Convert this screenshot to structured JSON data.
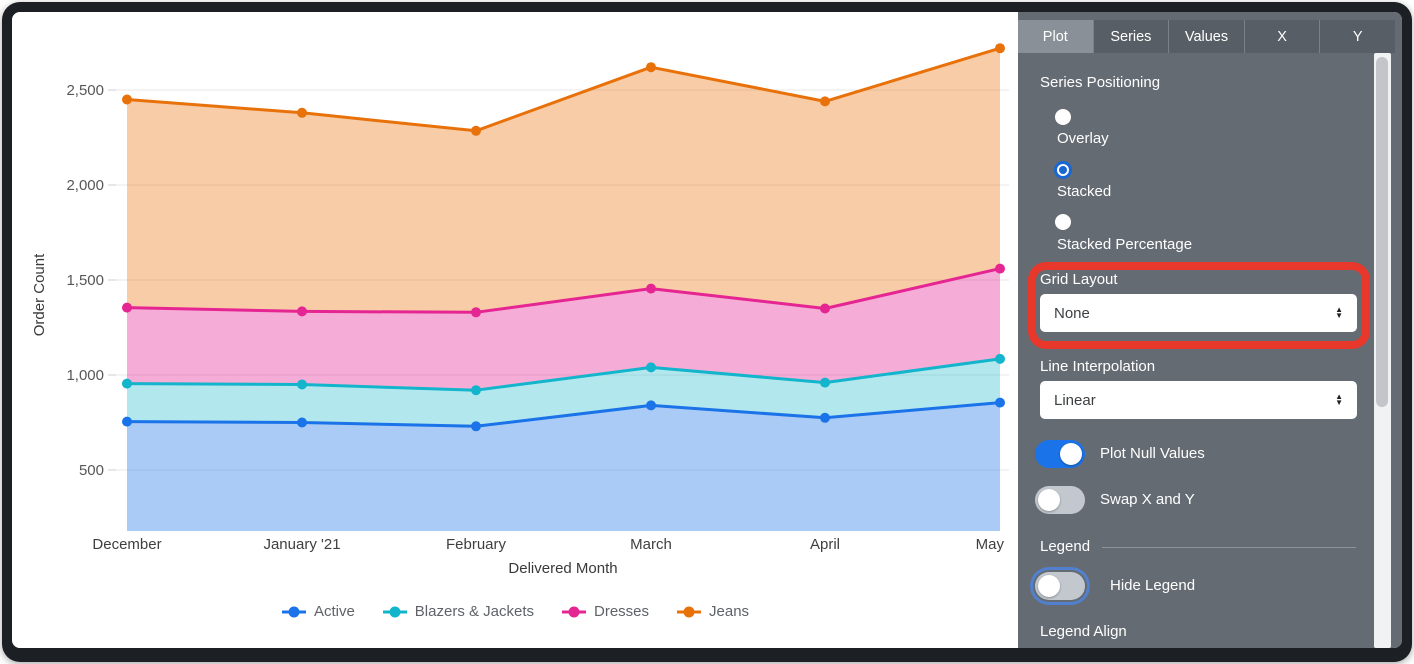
{
  "window": {
    "frame_color": "#1c2024",
    "chart_bg": "#ffffff",
    "panel_bg": "#656b73"
  },
  "chart_data": {
    "type": "area",
    "stacking": "stacked",
    "title": "",
    "x_axis_label": "Delivered Month",
    "y_axis_label": "Order Count",
    "categories": [
      "December",
      "January '21",
      "February",
      "March",
      "April",
      "May"
    ],
    "y_ticks": [
      500,
      1000,
      1500,
      2000,
      2500
    ],
    "grid": true,
    "legend_position": "bottom",
    "series": [
      {
        "name": "Active",
        "color": "#1A73E8",
        "fill": "rgba(26,115,232,0.37)",
        "values": [
          755,
          750,
          730,
          840,
          775,
          855
        ]
      },
      {
        "name": "Blazers & Jackets",
        "color": "#12B5CB",
        "fill": "rgba(18,181,203,0.32)",
        "values": [
          200,
          200,
          190,
          200,
          185,
          230
        ]
      },
      {
        "name": "Dresses",
        "color": "#E52592",
        "fill": "rgba(229,37,146,0.38)",
        "values": [
          400,
          385,
          410,
          415,
          390,
          475
        ]
      },
      {
        "name": "Jeans",
        "color": "#E8710A",
        "fill": "rgba(232,113,10,0.36)",
        "values": [
          1095,
          1045,
          955,
          1165,
          1090,
          1160
        ]
      }
    ],
    "stacked_totals_note": "cumulative line positions: Active 755/750/730/840/775/855; +Blazers 955/950/920/1040/960/1085; +Dresses 1355/1335/1330/1455/1350/1560; +Jeans 2450/2380/2285/2620/2440/2720"
  },
  "panel": {
    "tabs": [
      {
        "label": "Plot",
        "active": true
      },
      {
        "label": "Series",
        "active": false
      },
      {
        "label": "Values",
        "active": false
      },
      {
        "label": "X",
        "active": false
      },
      {
        "label": "Y",
        "active": false
      }
    ],
    "series_positioning": {
      "label": "Series Positioning",
      "options": [
        {
          "label": "Overlay",
          "selected": false
        },
        {
          "label": "Stacked",
          "selected": true
        },
        {
          "label": "Stacked Percentage",
          "selected": false
        }
      ]
    },
    "grid_layout": {
      "label": "Grid Layout",
      "value": "None",
      "highlighted": true,
      "highlight_color": "#E8382C"
    },
    "line_interpolation": {
      "label": "Line Interpolation",
      "value": "Linear"
    },
    "toggles": [
      {
        "label": "Plot Null Values",
        "on": true
      },
      {
        "label": "Swap X and Y",
        "on": false
      }
    ],
    "legend_section": {
      "header": "Legend",
      "hide_legend": {
        "label": "Hide Legend",
        "on": false,
        "focused": true
      },
      "legend_align_label": "Legend Align"
    },
    "accent_color": "#1a73e8"
  }
}
